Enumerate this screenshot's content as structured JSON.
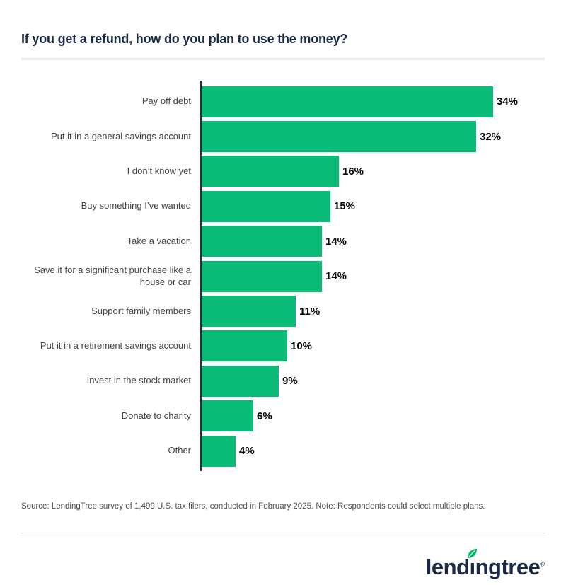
{
  "header": {
    "title": "If you get a refund, how do you plan to use the money?"
  },
  "chart_data": {
    "type": "bar",
    "orientation": "horizontal",
    "title": "If you get a refund, how do you plan to use the money?",
    "categories": [
      "Pay off debt",
      "Put it in a general savings account",
      "I don’t know yet",
      "Buy something I’ve wanted",
      "Take a vacation",
      "Save it for a significant purchase like a house or car",
      "Support family members",
      "Put it in a retirement savings account",
      "Invest in the stock market",
      "Donate to charity",
      "Other"
    ],
    "values": [
      34,
      32,
      16,
      15,
      14,
      14,
      11,
      10,
      9,
      6,
      4
    ],
    "value_suffix": "%",
    "bar_color": "#0abc77",
    "axis_max": 34,
    "grid": false,
    "value_label_position": "end-of-bar",
    "xlabel": "",
    "ylabel": ""
  },
  "footer": {
    "source_note": "Source: LendingTree survey of 1,499 U.S. tax filers, conducted in February 2025. Note: Respondents could select multiple plans.",
    "logo": {
      "pre": "lend",
      "dotless_i": "ı",
      "post": "ngtree",
      "registered": "®",
      "brand_color": "#1b2a44",
      "leaf_color": "#00b56a"
    }
  }
}
